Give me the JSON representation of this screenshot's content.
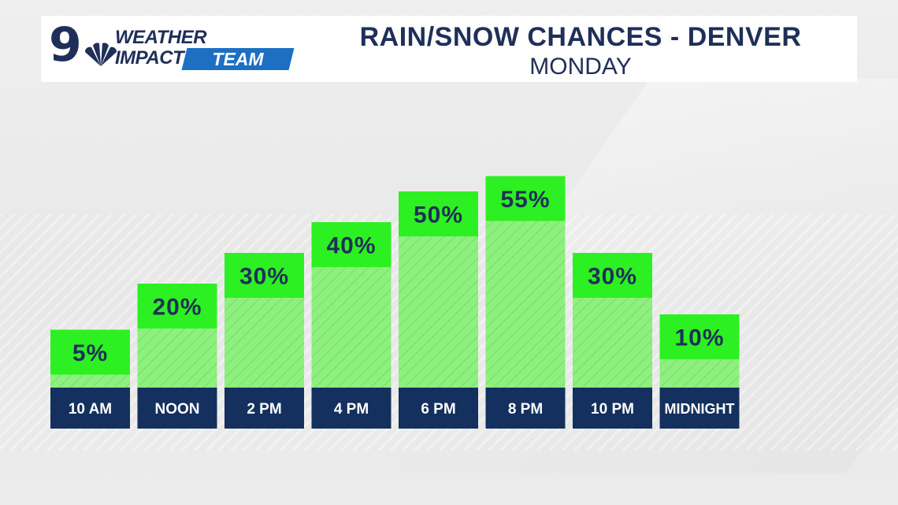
{
  "header": {
    "logo_number": "9",
    "logo_line1": "WEATHER",
    "logo_line2": "IMPACT",
    "logo_team": "TEAM",
    "title": "RAIN/SNOW CHANCES - DENVER",
    "subtitle": "MONDAY"
  },
  "colors": {
    "navy": "#14305e",
    "bar_fill": "#8ef07e",
    "label_box": "#2df022",
    "value_text": "#1f2f59",
    "accent_blue": "#1d6fc4"
  },
  "chart_data": {
    "type": "bar",
    "categories": [
      "10 AM",
      "NOON",
      "2 PM",
      "4 PM",
      "6 PM",
      "8 PM",
      "10 PM",
      "MIDNIGHT"
    ],
    "values": [
      5,
      20,
      30,
      40,
      50,
      55,
      30,
      10
    ],
    "value_labels": [
      "5%",
      "20%",
      "30%",
      "40%",
      "50%",
      "55%",
      "30%",
      "10%"
    ],
    "title": "RAIN/SNOW CHANCES - DENVER",
    "subtitle": "MONDAY",
    "xlabel": "",
    "ylabel": "",
    "ylim": [
      0,
      100
    ],
    "grid": false
  }
}
